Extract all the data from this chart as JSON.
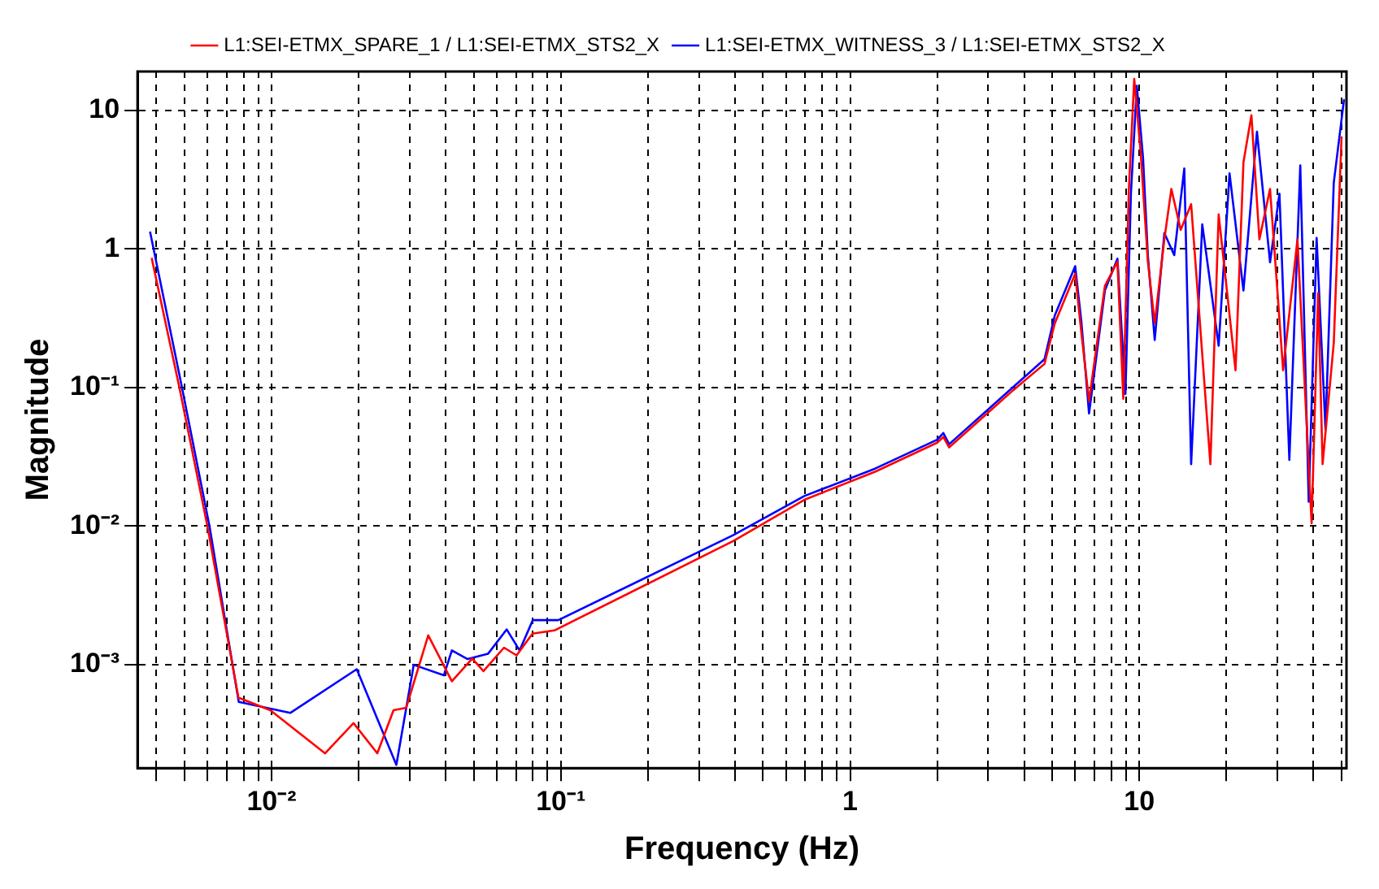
{
  "chart_data": {
    "type": "line",
    "xlabel": "Frequency (Hz)",
    "ylabel": "Magnitude",
    "log": "xy",
    "grid": true,
    "legend": "top",
    "marker": "none",
    "line_style": "solid",
    "xlim": [
      0.00344,
      52
    ],
    "ylim": [
      0.00018,
      19
    ],
    "xticks": [
      {
        "value": 0.004,
        "label": null
      },
      {
        "value": 0.005,
        "label": null
      },
      {
        "value": 0.006,
        "label": null
      },
      {
        "value": 0.007,
        "label": null
      },
      {
        "value": 0.008,
        "label": null
      },
      {
        "value": 0.009,
        "label": null
      },
      {
        "value": 0.01,
        "label": "10⁻²"
      },
      {
        "value": 0.02,
        "label": null
      },
      {
        "value": 0.03,
        "label": null
      },
      {
        "value": 0.04,
        "label": null
      },
      {
        "value": 0.05,
        "label": null
      },
      {
        "value": 0.06,
        "label": null
      },
      {
        "value": 0.07,
        "label": null
      },
      {
        "value": 0.08,
        "label": null
      },
      {
        "value": 0.09,
        "label": null
      },
      {
        "value": 0.1,
        "label": "10⁻¹"
      },
      {
        "value": 0.2,
        "label": null
      },
      {
        "value": 0.3,
        "label": null
      },
      {
        "value": 0.4,
        "label": null
      },
      {
        "value": 0.5,
        "label": null
      },
      {
        "value": 0.6,
        "label": null
      },
      {
        "value": 0.7,
        "label": null
      },
      {
        "value": 0.8,
        "label": null
      },
      {
        "value": 0.9,
        "label": null
      },
      1,
      {
        "value": 2,
        "label": null
      },
      {
        "value": 3,
        "label": null
      },
      {
        "value": 4,
        "label": null
      },
      {
        "value": 5,
        "label": null
      },
      {
        "value": 6,
        "label": null
      },
      {
        "value": 7,
        "label": null
      },
      {
        "value": 8,
        "label": null
      },
      {
        "value": 9,
        "label": null
      },
      10,
      {
        "value": 20,
        "label": null
      },
      {
        "value": 30,
        "label": null
      },
      {
        "value": 40,
        "label": null
      },
      {
        "value": 50,
        "label": null
      }
    ],
    "yticks": [
      {
        "value": 0.001,
        "label": "10⁻³"
      },
      {
        "value": 0.01,
        "label": "10⁻²"
      },
      {
        "value": 0.1,
        "label": "10⁻¹"
      },
      1,
      10
    ],
    "series": [
      {
        "name": "L1:SEI-ETMX_SPARE_1 / L1:SEI-ETMX_STS2_X",
        "color": "#ff0000",
        "x": [
          0.00385,
          0.0048,
          0.006,
          0.00768,
          0.0099,
          0.0153,
          0.0192,
          0.0232,
          0.0264,
          0.0292,
          0.0348,
          0.042,
          0.0494,
          0.054,
          0.0636,
          0.0703,
          0.0798,
          0.095,
          0.394,
          0.695,
          1.22,
          2.0,
          2.1,
          2.2,
          3.65,
          4.7,
          5.1,
          6.0,
          6.3,
          6.7,
          7.6,
          8.4,
          8.8,
          9.2,
          9.6,
          10.1,
          10.7,
          11.3,
          12.2,
          12.9,
          13.9,
          15.1,
          17.6,
          18.8,
          21.5,
          22.9,
          24.4,
          26,
          28.3,
          31.4,
          35.2,
          39.4,
          41.5,
          43,
          47,
          50
        ],
        "values": [
          0.86,
          0.1,
          0.01,
          0.00058,
          0.00047,
          0.00023,
          0.00038,
          0.00023,
          0.00047,
          0.00049,
          0.00163,
          0.00076,
          0.00111,
          0.0009,
          0.00133,
          0.00117,
          0.00168,
          0.00177,
          0.0078,
          0.0155,
          0.0247,
          0.04,
          0.044,
          0.037,
          0.095,
          0.148,
          0.29,
          0.66,
          0.25,
          0.08,
          0.54,
          0.81,
          0.083,
          2.7,
          16.8,
          5,
          0.81,
          0.29,
          1.17,
          2.7,
          1.37,
          2.1,
          0.028,
          1.77,
          0.133,
          4.2,
          9.2,
          1.17,
          2.7,
          0.133,
          1.17,
          0.0105,
          0.48,
          0.028,
          0.21,
          6.4
        ]
      },
      {
        "name": "L1:SEI-ETMX_WITNESS_3 / L1:SEI-ETMX_STS2_X",
        "color": "#0000ff",
        "x": [
          0.0038,
          0.0049,
          0.0061,
          0.0077,
          0.0116,
          0.0197,
          0.027,
          0.031,
          0.0394,
          0.042,
          0.0476,
          0.056,
          0.065,
          0.072,
          0.08,
          0.098,
          0.394,
          0.695,
          1.22,
          2.0,
          2.1,
          2.2,
          3.65,
          4.7,
          5.1,
          6.0,
          6.3,
          6.7,
          7.6,
          8.4,
          8.95,
          9.35,
          9.8,
          10.3,
          10.7,
          11.3,
          12.2,
          13.2,
          14.3,
          15.1,
          16.5,
          18.8,
          20.5,
          22.9,
          25.5,
          28.3,
          30.5,
          33,
          36,
          38.5,
          41,
          44,
          47,
          51
        ],
        "values": [
          1.33,
          0.1,
          0.01,
          0.00054,
          0.00045,
          0.00093,
          0.00019,
          0.001,
          0.00084,
          0.00127,
          0.0011,
          0.0012,
          0.0018,
          0.00127,
          0.0021,
          0.0021,
          0.0086,
          0.0165,
          0.026,
          0.042,
          0.047,
          0.039,
          0.1,
          0.16,
          0.33,
          0.75,
          0.3,
          0.065,
          0.5,
          0.85,
          0.09,
          2.5,
          15,
          4.5,
          0.9,
          0.22,
          1.3,
          0.9,
          3.8,
          0.028,
          1.5,
          0.2,
          3.5,
          0.5,
          7,
          0.8,
          2.5,
          0.03,
          4,
          0.015,
          1.2,
          0.05,
          3,
          12
        ]
      }
    ]
  }
}
